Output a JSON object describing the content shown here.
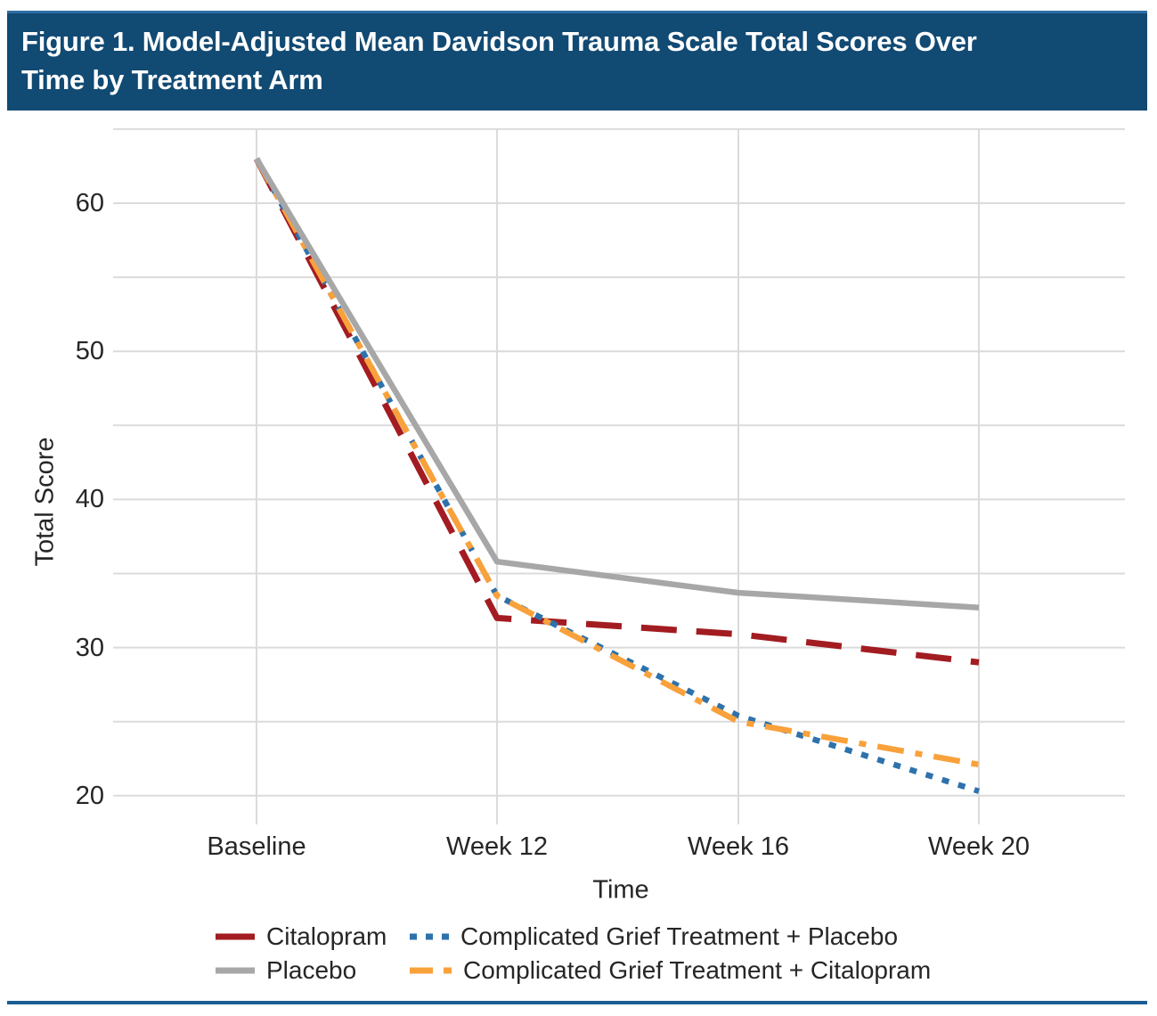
{
  "header": {
    "title_line1": "Figure 1. Model-Adjusted Mean Davidson Trauma Scale Total Scores Over",
    "title_line2": "Time by Treatment Arm"
  },
  "colors": {
    "title_bar_background": "#114A73",
    "title_bar_top_border": "#2E6DA4",
    "bottom_rule": "#1B5E94",
    "gridline": "#DBDBDB",
    "text": "#262626",
    "citalopram": "#A21C21",
    "placebo": "#A7A7A7",
    "cgt_placebo": "#2E72AC",
    "cgt_citalopram": "#F9A13A"
  },
  "chart_data": {
    "type": "line",
    "title": "Figure 1. Model-Adjusted Mean Davidson Trauma Scale Total Scores Over Time by Treatment Arm",
    "xlabel": "Time",
    "ylabel": "Total Score",
    "categories": [
      "Baseline",
      "Week 12",
      "Week 16",
      "Week 20"
    ],
    "y_ticks": [
      60,
      50,
      40,
      30,
      20
    ],
    "minor_grid_step": 5,
    "grid_values": [
      20,
      25,
      30,
      35,
      40,
      45,
      50,
      55,
      60,
      65
    ],
    "ylim": [
      18,
      65
    ],
    "grid": "on",
    "legend_position": "bottom",
    "series": [
      {
        "name": "Citalopram",
        "color": "#A21C21",
        "style": "long-dash",
        "values": [
          63,
          32,
          30.9,
          29
        ]
      },
      {
        "name": "Placebo",
        "color": "#A7A7A7",
        "style": "solid",
        "values": [
          63,
          35.8,
          33.7,
          32.7
        ]
      },
      {
        "name": "Complicated Grief Treatment + Placebo",
        "color": "#2E72AC",
        "style": "dotted",
        "values": [
          63,
          33.5,
          25.4,
          20.3
        ]
      },
      {
        "name": "Complicated Grief Treatment + Citalopram",
        "color": "#F9A13A",
        "style": "dash-dot",
        "values": [
          63,
          33.5,
          25,
          22.1
        ]
      }
    ]
  }
}
